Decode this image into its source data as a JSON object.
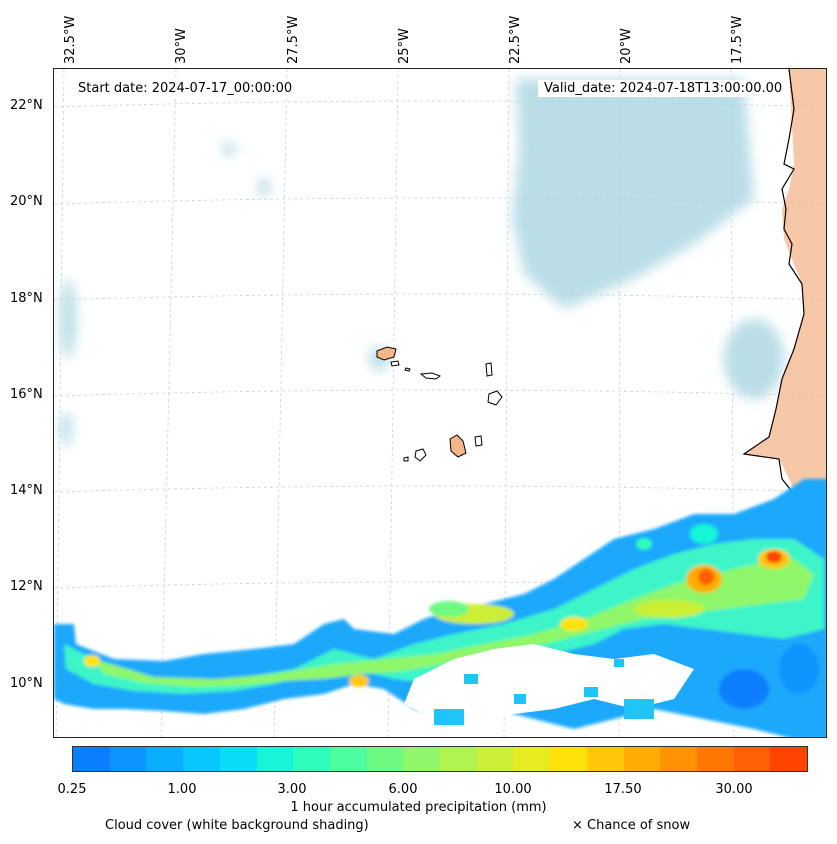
{
  "map": {
    "start_date_label": "Start date: 2024-07-17_00:00:00",
    "valid_date_label": "Valid_date: 2024-07-18T13:00:00.00",
    "lon_labels": [
      "32.5°W",
      "30°W",
      "27.5°W",
      "25°W",
      "22.5°W",
      "20°W",
      "17.5°W"
    ],
    "lat_labels": [
      "22°N",
      "20°N",
      "18°N",
      "16°N",
      "14°N",
      "12°N",
      "10°N"
    ],
    "colors": {
      "cloud": "#a9d5e3",
      "land": "#f4b58a",
      "coast": "#000000",
      "grid": "#bbbbbb"
    }
  },
  "colorbar": {
    "colors": [
      "#0a7ffe",
      "#0a96fe",
      "#09aefe",
      "#08c7fe",
      "#07ddf6",
      "#16f5d8",
      "#2dfcbc",
      "#4dfc9e",
      "#6efa82",
      "#8ff769",
      "#aef34f",
      "#cbef36",
      "#e6ec20",
      "#ffe10a",
      "#ffc707",
      "#ffad06",
      "#ff9305",
      "#ff7804",
      "#ff5e03",
      "#ff4402"
    ],
    "tick_labels": [
      "0.25",
      "1.00",
      "3.00",
      "6.00",
      "10.00",
      "17.50",
      "30.00"
    ],
    "label": "1 hour accumulated precipitation (mm)"
  },
  "footer": {
    "cloud_note": "Cloud cover (white background shading)",
    "snow_note": "× Chance of snow"
  }
}
